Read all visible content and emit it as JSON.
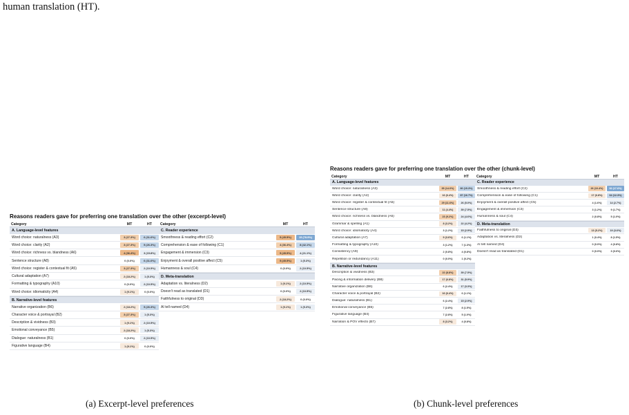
{
  "intro_text": "human translation (HT).",
  "colors": {
    "mt_low": "#f7e9dc",
    "mt_mid": "#f2cfad",
    "mt_high": "#ecb888",
    "ht_low": "#e8eef5",
    "ht_mid": "#c5d7ea",
    "ht_high": "#7fa8d2",
    "section_bg": "#dde3ec"
  },
  "panel_a": {
    "title": "Reasons readers gave for preferring one translation over the other (excerpt-level)",
    "header": {
      "category": "Category",
      "mt": "MT",
      "ht": "HT"
    },
    "left": [
      {
        "section": "A. Language-level features"
      },
      {
        "label": "Word choice: naturalness (A3)",
        "mt": "3 (27.3%)",
        "ht": "6 (31.6%)",
        "mt_l": 2,
        "ht_l": 2
      },
      {
        "label": "Word choice: clarity (A2)",
        "mt": "3 (27.3%)",
        "ht": "5 (26.3%)",
        "mt_l": 2,
        "ht_l": 2
      },
      {
        "label": "Word choice: richness vs. blandness (A6)",
        "mt": "4 (36.4%)",
        "ht": "3 (15.8%)",
        "mt_l": 3,
        "ht_l": 1
      },
      {
        "label": "Sentence structure (A8)",
        "mt": "0 (0.0%)",
        "ht": "6 (31.6%)",
        "mt_l": 0,
        "ht_l": 2
      },
      {
        "label": "Word choice: register & contextual fit (A5)",
        "mt": "3 (27.3%)",
        "ht": "2 (10.5%)",
        "mt_l": 2,
        "ht_l": 1
      },
      {
        "label": "Cultural adaptation (A7)",
        "mt": "2 (18.2%)",
        "ht": "1 (5.3%)",
        "mt_l": 1,
        "ht_l": 1
      },
      {
        "label": "Formatting & typography (A10)",
        "mt": "0 (0.0%)",
        "ht": "2 (10.5%)",
        "mt_l": 0,
        "ht_l": 1
      },
      {
        "label": "Word choice: idiomaticity (A4)",
        "mt": "1 (9.1%)",
        "ht": "0 (0.0%)",
        "mt_l": 1,
        "ht_l": 0
      },
      {
        "section": "B. Narrative-level features"
      },
      {
        "label": "Narrative organization (B6)",
        "mt": "2 (18.2%)",
        "ht": "5 (26.3%)",
        "mt_l": 1,
        "ht_l": 2
      },
      {
        "label": "Character voice & portrayal (B2)",
        "mt": "3 (27.3%)",
        "ht": "1 (5.3%)",
        "mt_l": 2,
        "ht_l": 1
      },
      {
        "label": "Description & vividness (B3)",
        "mt": "1 (9.1%)",
        "ht": "2 (10.5%)",
        "mt_l": 1,
        "ht_l": 1
      },
      {
        "label": "Emotional conveyance (B5)",
        "mt": "2 (18.2%)",
        "ht": "1 (5.3%)",
        "mt_l": 1,
        "ht_l": 1
      },
      {
        "label": "Dialogue: naturalness (B1)",
        "mt": "0 (0.0%)",
        "ht": "2 (10.5%)",
        "mt_l": 0,
        "ht_l": 1
      },
      {
        "label": "Figurative language (B4)",
        "mt": "1 (9.1%)",
        "ht": "0 (0.0%)",
        "mt_l": 1,
        "ht_l": 0
      }
    ],
    "right": [
      {
        "section": "C. Reader experience"
      },
      {
        "label": "Smoothness & reading effort (C2)",
        "mt": "5 (45.5%)",
        "ht": "15 (78.9%)",
        "mt_l": 3,
        "ht_l": 3
      },
      {
        "label": "Comprehension & ease of following (C1)",
        "mt": "4 (36.4%)",
        "ht": "8 (42.1%)",
        "mt_l": 2,
        "ht_l": 2
      },
      {
        "label": "Engagement & immersion (C3)",
        "mt": "5 (45.5%)",
        "ht": "4 (21.1%)",
        "mt_l": 3,
        "ht_l": 1
      },
      {
        "label": "Enjoyment & overall positive affect (C5)",
        "mt": "5 (45.5%)",
        "ht": "1 (5.3%)",
        "mt_l": 3,
        "ht_l": 1
      },
      {
        "label": "Humanness & soul (C4)",
        "mt": "0 (0.0%)",
        "ht": "2 (10.5%)",
        "mt_l": 0,
        "ht_l": 1
      },
      {
        "section": "D. Meta-translation"
      },
      {
        "label": "Adaptation vs. literalness (D2)",
        "mt": "1 (9.1%)",
        "ht": "2 (10.5%)",
        "mt_l": 1,
        "ht_l": 1
      },
      {
        "label": "Doesn't read as translated (D1)",
        "mt": "0 (0.0%)",
        "ht": "2 (10.5%)",
        "mt_l": 0,
        "ht_l": 1
      },
      {
        "label": "Faithfulness to original (D3)",
        "mt": "2 (18.2%)",
        "ht": "0 (0.0%)",
        "mt_l": 1,
        "ht_l": 0
      },
      {
        "label": "AI tell named (D4)",
        "mt": "1 (9.1%)",
        "ht": "1 (5.3%)",
        "mt_l": 1,
        "ht_l": 1
      }
    ]
  },
  "panel_b": {
    "title": "Reasons readers gave for preferring one translation over the other (chunk-level)",
    "header": {
      "category": "Category",
      "mt": "MT",
      "ht": "HT"
    },
    "left": [
      {
        "section": "A. Language-level features"
      },
      {
        "label": "Word choice: naturalness (A3)",
        "mt": "35 (14.0%)",
        "ht": "80 (15.3%)",
        "mt_l": 2,
        "ht_l": 2
      },
      {
        "label": "Word choice: clarity (A2)",
        "mt": "16 (6.4%)",
        "ht": "87 (16.7%)",
        "mt_l": 1,
        "ht_l": 2
      },
      {
        "label": "Word choice: register & contextual fit (A5)",
        "mt": "29 (11.6%)",
        "ht": "26 (5.0%)",
        "mt_l": 2,
        "ht_l": 1
      },
      {
        "label": "Sentence structure (A8)",
        "mt": "11 (4.4%)",
        "ht": "39 (7.5%)",
        "mt_l": 1,
        "ht_l": 1
      },
      {
        "label": "Word choice: richness vs. blandness (A6)",
        "mt": "23 (9.2%)",
        "ht": "24 (4.6%)",
        "mt_l": 2,
        "ht_l": 1
      },
      {
        "label": "Grammar & spelling (A1)",
        "mt": "8 (3.2%)",
        "ht": "22 (4.2%)",
        "mt_l": 1,
        "ht_l": 1
      },
      {
        "label": "Word choice: idiomaticity (A4)",
        "mt": "3 (1.2%)",
        "ht": "15 (2.9%)",
        "mt_l": 0,
        "ht_l": 1
      },
      {
        "label": "Cultural adaptation (A7)",
        "mt": "9 (3.6%)",
        "ht": "6 (1.1%)",
        "mt_l": 1,
        "ht_l": 0
      },
      {
        "label": "Formatting & typography (A10)",
        "mt": "3 (1.2%)",
        "ht": "7 (1.3%)",
        "mt_l": 0,
        "ht_l": 0
      },
      {
        "label": "Consistency (A9)",
        "mt": "2 (0.8%)",
        "ht": "4 (0.8%)",
        "mt_l": 0,
        "ht_l": 0
      },
      {
        "label": "Repetition or redundancy (A11)",
        "mt": "0 (0.0%)",
        "ht": "1 (0.2%)",
        "mt_l": 0,
        "ht_l": 0
      },
      {
        "section": "B. Narrative-level features"
      },
      {
        "label": "Description & vividness (B3)",
        "mt": "22 (8.8%)",
        "ht": "39 (7.5%)",
        "mt_l": 2,
        "ht_l": 1
      },
      {
        "label": "Pacing & information delivery (B8)",
        "mt": "17 (6.8%)",
        "ht": "31 (5.9%)",
        "mt_l": 1,
        "ht_l": 1
      },
      {
        "label": "Narrative organization (B6)",
        "mt": "6 (2.4%)",
        "ht": "17 (3.3%)",
        "mt_l": 0,
        "ht_l": 1
      },
      {
        "label": "Character voice & portrayal (B2)",
        "mt": "16 (6.4%)",
        "ht": "6 (1.1%)",
        "mt_l": 1,
        "ht_l": 0
      },
      {
        "label": "Dialogue: naturalness (B1)",
        "mt": "6 (2.4%)",
        "ht": "15 (2.9%)",
        "mt_l": 0,
        "ht_l": 1
      },
      {
        "label": "Emotional conveyance (B5)",
        "mt": "7 (2.8%)",
        "ht": "8 (1.5%)",
        "mt_l": 0,
        "ht_l": 0
      },
      {
        "label": "Figurative language (B4)",
        "mt": "7 (2.8%)",
        "ht": "5 (1.0%)",
        "mt_l": 0,
        "ht_l": 0
      },
      {
        "label": "Narration & POV effects (B7)",
        "mt": "8 (3.2%)",
        "ht": "4 (0.8%)",
        "mt_l": 1,
        "ht_l": 0
      }
    ],
    "right": [
      {
        "section": "C. Reader experience"
      },
      {
        "label": "Smoothness & reading effort (C2)",
        "mt": "26 (10.4%)",
        "ht": "92 (17.6%)",
        "mt_l": 2,
        "ht_l": 3
      },
      {
        "label": "Comprehension & ease of following (C1)",
        "mt": "17 (6.8%)",
        "ht": "64 (12.3%)",
        "mt_l": 1,
        "ht_l": 2
      },
      {
        "label": "Enjoyment & overall positive affect (C5)",
        "mt": "4 (1.6%)",
        "ht": "14 (2.7%)",
        "mt_l": 0,
        "ht_l": 1
      },
      {
        "label": "Engagement & immersion (C3)",
        "mt": "3 (1.2%)",
        "ht": "9 (1.7%)",
        "mt_l": 0,
        "ht_l": 0
      },
      {
        "label": "Humanness & soul (C4)",
        "mt": "2 (0.8%)",
        "ht": "5 (1.0%)",
        "mt_l": 0,
        "ht_l": 0
      },
      {
        "section": "D. Meta-translation"
      },
      {
        "label": "Faithfulness to original (D3)",
        "mt": "13 (5.2%)",
        "ht": "19 (3.6%)",
        "mt_l": 1,
        "ht_l": 1
      },
      {
        "label": "Adaptation vs. literalness (D2)",
        "mt": "1 (0.4%)",
        "ht": "8 (1.5%)",
        "mt_l": 0,
        "ht_l": 0
      },
      {
        "label": "AI tell named (D4)",
        "mt": "0 (0.0%)",
        "ht": "4 (0.8%)",
        "mt_l": 0,
        "ht_l": 0
      },
      {
        "label": "Doesn't read as translated (D1)",
        "mt": "0 (0.0%)",
        "ht": "3 (0.6%)",
        "mt_l": 0,
        "ht_l": 0
      }
    ]
  },
  "captions": {
    "a": "(a) Excerpt-level preferences",
    "b": "(b) Chunk-level preferences"
  }
}
